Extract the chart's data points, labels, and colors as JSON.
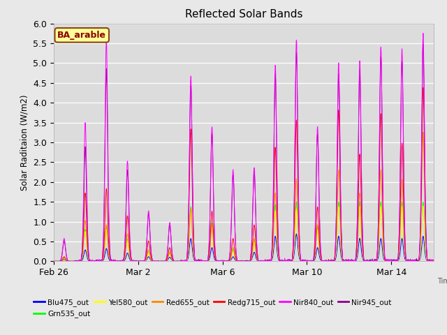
{
  "title": "Reflected Solar Bands",
  "ylabel": "Solar Raditaion (W/m2)",
  "xlabel": "Time",
  "annotation": "BA_arable",
  "ylim": [
    0,
    6.0
  ],
  "yticks": [
    0.0,
    0.5,
    1.0,
    1.5,
    2.0,
    2.5,
    3.0,
    3.5,
    4.0,
    4.5,
    5.0,
    5.5,
    6.0
  ],
  "series": [
    {
      "label": "Blu475_out",
      "color": "#0000FF"
    },
    {
      "label": "Grn535_out",
      "color": "#00FF00"
    },
    {
      "label": "Yel580_out",
      "color": "#FFFF00"
    },
    {
      "label": "Red655_out",
      "color": "#FF8800"
    },
    {
      "label": "Redg715_out",
      "color": "#FF0000"
    },
    {
      "label": "Nir840_out",
      "color": "#FF00FF"
    },
    {
      "label": "Nir945_out",
      "color": "#8B008B"
    }
  ],
  "xtick_labels": [
    "Feb 26",
    "Mar 2",
    "Mar 6",
    "Mar 10",
    "Mar 14"
  ],
  "xtick_positions": [
    0,
    4,
    8,
    12,
    16
  ],
  "n_days": 19,
  "pts_per_day": 144,
  "background_color": "#dcdcdc",
  "plot_bg_color": "#dcdcdc",
  "fig_facecolor": "#e8e8e8"
}
